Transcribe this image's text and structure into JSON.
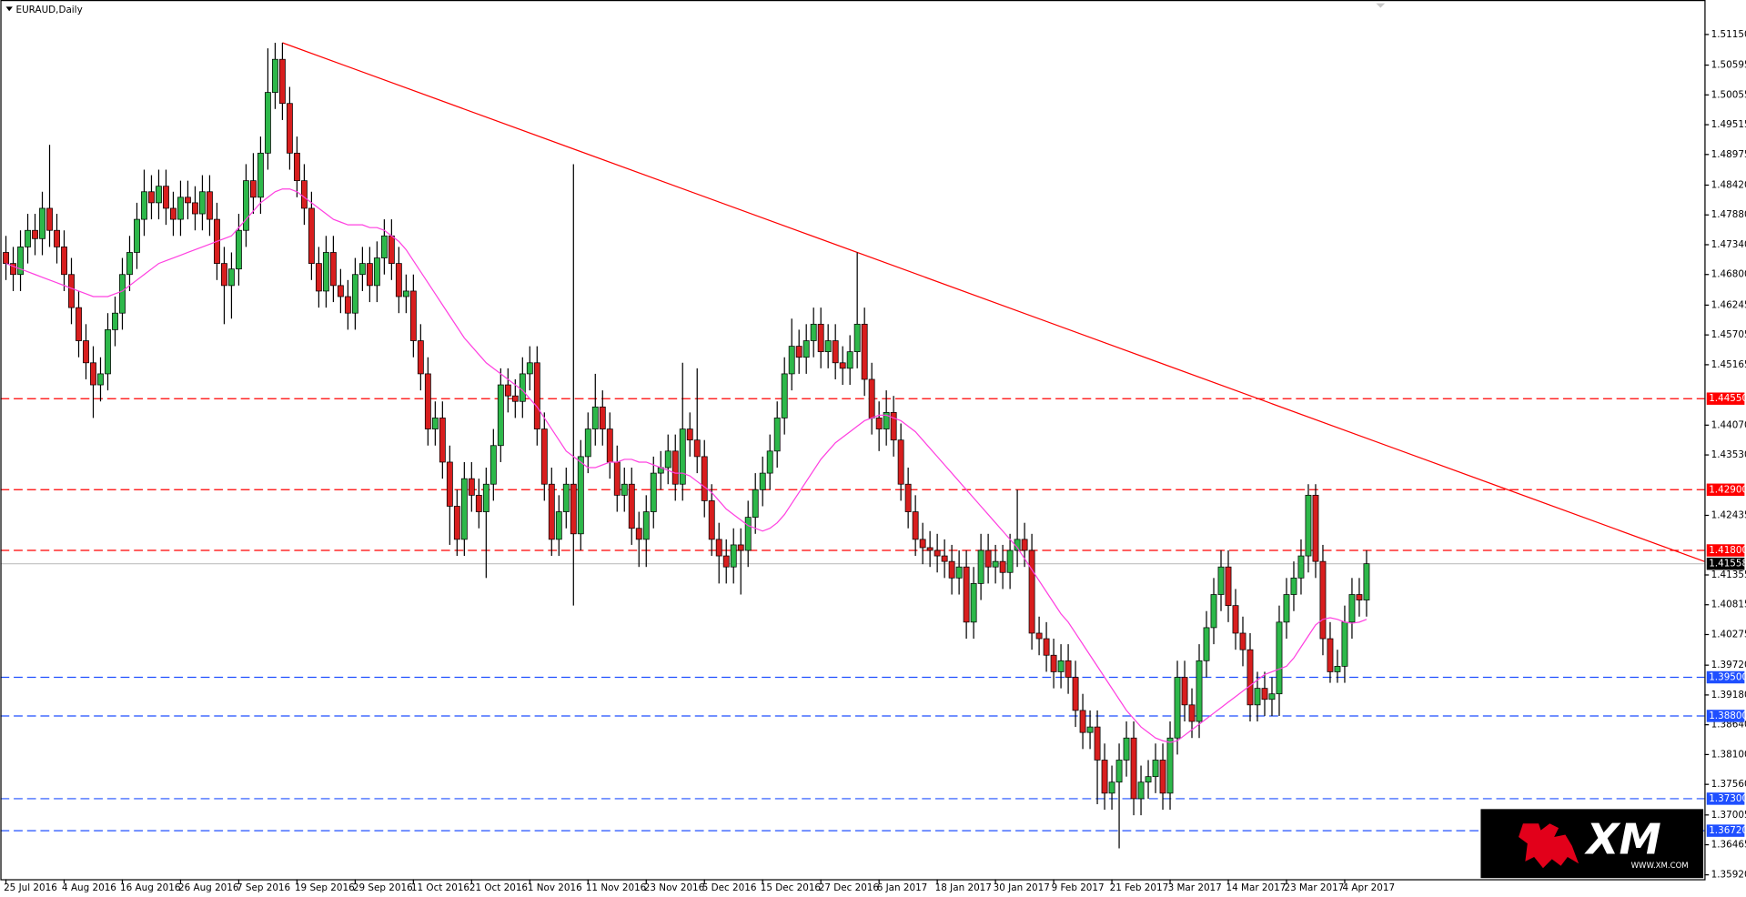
{
  "chart_data": {
    "type": "candlestick",
    "title": "EURAUD,Daily",
    "categories": [
      "25 Jul 2016",
      null,
      null,
      null,
      null,
      null,
      null,
      null,
      "4 Aug 2016",
      null,
      null,
      null,
      null,
      null,
      null,
      null,
      "16 Aug 2016",
      null,
      null,
      null,
      null,
      null,
      null,
      null,
      "26 Aug 2016",
      null,
      null,
      null,
      null,
      null,
      null,
      null,
      "7 Sep 2016",
      null,
      null,
      null,
      null,
      null,
      null,
      null,
      "19 Sep 2016",
      null,
      null,
      null,
      null,
      null,
      null,
      null,
      "29 Sep 2016",
      null,
      null,
      null,
      null,
      null,
      null,
      null,
      "11 Oct 2016",
      null,
      null,
      null,
      null,
      null,
      null,
      null,
      "21 Oct 2016",
      null,
      null,
      null,
      null,
      null,
      null,
      null,
      "1 Nov 2016",
      null,
      null,
      null,
      null,
      null,
      null,
      null,
      "11 Nov 2016",
      null,
      null,
      null,
      null,
      null,
      null,
      null,
      "23 Nov 2016",
      null,
      null,
      null,
      null,
      null,
      null,
      null,
      "5 Dec 2016",
      null,
      null,
      null,
      null,
      null,
      null,
      null,
      "15 Dec 2016",
      null,
      null,
      null,
      null,
      null,
      null,
      null,
      "27 Dec 2016",
      null,
      null,
      null,
      null,
      null,
      null,
      null,
      "6 Jan 2017",
      null,
      null,
      null,
      null,
      null,
      null,
      null,
      "18 Jan 2017",
      null,
      null,
      null,
      null,
      null,
      null,
      null,
      "30 Jan 2017",
      null,
      null,
      null,
      null,
      null,
      null,
      null,
      "9 Feb 2017",
      null,
      null,
      null,
      null,
      null,
      null,
      null,
      "21 Feb 2017",
      null,
      null,
      null,
      null,
      null,
      null,
      null,
      "3 Mar 2017",
      null,
      null,
      null,
      null,
      null,
      null,
      null,
      "14 Mar 2017",
      null,
      null,
      null,
      null,
      null,
      null,
      null,
      "23 Mar 2017",
      null,
      null,
      null,
      null,
      null,
      null,
      null,
      "4 Apr 2017",
      null,
      null,
      null
    ],
    "open": [
      1.472,
      1.47,
      1.468,
      1.473,
      1.476,
      1.4745,
      1.48,
      1.476,
      1.473,
      1.468,
      1.462,
      1.456,
      1.452,
      1.448,
      1.45,
      1.458,
      1.461,
      1.468,
      1.472,
      1.478,
      1.483,
      1.481,
      1.484,
      1.48,
      1.478,
      1.482,
      1.481,
      1.479,
      1.483,
      1.478,
      1.47,
      1.466,
      1.469,
      1.476,
      1.485,
      1.482,
      1.49,
      1.501,
      1.507,
      1.499,
      1.49,
      1.485,
      1.48,
      1.47,
      1.465,
      1.472,
      1.466,
      1.464,
      1.461,
      1.468,
      1.47,
      1.466,
      1.471,
      1.475,
      1.47,
      1.464,
      1.465,
      1.456,
      1.45,
      1.44,
      1.442,
      1.434,
      1.426,
      1.42,
      1.431,
      1.428,
      1.425,
      1.43,
      1.437,
      1.448,
      1.446,
      1.445,
      1.45,
      1.452,
      1.44,
      1.43,
      1.42,
      1.425,
      1.43,
      1.421,
      1.435,
      1.44,
      1.444,
      1.44,
      1.434,
      1.428,
      1.43,
      1.422,
      1.42,
      1.425,
      1.432,
      1.433,
      1.436,
      1.43,
      1.44,
      1.438,
      1.435,
      1.427,
      1.42,
      1.417,
      1.415,
      1.419,
      1.418,
      1.424,
      1.429,
      1.432,
      1.436,
      1.442,
      1.45,
      1.455,
      1.453,
      1.456,
      1.459,
      1.454,
      1.456,
      1.452,
      1.451,
      1.454,
      1.459,
      1.449,
      1.442,
      1.44,
      1.443,
      1.438,
      1.43,
      1.425,
      1.42,
      1.4185,
      1.418,
      1.417,
      1.416,
      1.413,
      1.415,
      1.405,
      1.412,
      1.418,
      1.415,
      1.416,
      1.414,
      1.418,
      1.42,
      1.418,
      1.403,
      1.402,
      1.399,
      1.396,
      1.398,
      1.395,
      1.389,
      1.385,
      1.386,
      1.38,
      1.374,
      1.376,
      1.38,
      1.384,
      1.373,
      1.376,
      1.377,
      1.38,
      1.374,
      1.384,
      1.395,
      1.39,
      1.387,
      1.398,
      1.404,
      1.41,
      1.415,
      1.408,
      1.403,
      1.4,
      1.39,
      1.393,
      1.391,
      1.392,
      1.405,
      1.41,
      1.413,
      1.417,
      1.428,
      1.416,
      1.402,
      1.396,
      1.397,
      1.405,
      1.41,
      1.409
    ],
    "high": [
      1.475,
      1.473,
      1.476,
      1.479,
      1.479,
      1.483,
      1.4915,
      1.479,
      1.476,
      1.471,
      1.465,
      1.459,
      1.455,
      1.453,
      1.461,
      1.464,
      1.471,
      1.475,
      1.481,
      1.487,
      1.486,
      1.487,
      1.487,
      1.483,
      1.485,
      1.485,
      1.484,
      1.486,
      1.486,
      1.481,
      1.473,
      1.472,
      1.479,
      1.488,
      1.49,
      1.493,
      1.509,
      1.51,
      1.51,
      1.502,
      1.493,
      1.488,
      1.483,
      1.473,
      1.475,
      1.475,
      1.469,
      1.467,
      1.471,
      1.473,
      1.473,
      1.474,
      1.478,
      1.478,
      1.473,
      1.468,
      1.468,
      1.459,
      1.453,
      1.445,
      1.445,
      1.437,
      1.429,
      1.434,
      1.434,
      1.431,
      1.433,
      1.44,
      1.451,
      1.451,
      1.449,
      1.453,
      1.455,
      1.455,
      1.443,
      1.433,
      1.428,
      1.433,
      1.488,
      1.438,
      1.443,
      1.45,
      1.447,
      1.443,
      1.437,
      1.433,
      1.433,
      1.425,
      1.428,
      1.435,
      1.436,
      1.439,
      1.439,
      1.452,
      1.443,
      1.451,
      1.438,
      1.43,
      1.423,
      1.42,
      1.422,
      1.422,
      1.427,
      1.432,
      1.435,
      1.439,
      1.445,
      1.453,
      1.46,
      1.458,
      1.459,
      1.462,
      1.462,
      1.459,
      1.459,
      1.455,
      1.457,
      1.472,
      1.462,
      1.452,
      1.445,
      1.447,
      1.446,
      1.441,
      1.433,
      1.428,
      1.423,
      1.4215,
      1.421,
      1.42,
      1.419,
      1.418,
      1.418,
      1.415,
      1.421,
      1.421,
      1.419,
      1.419,
      1.421,
      1.429,
      1.423,
      1.421,
      1.406,
      1.405,
      1.402,
      1.401,
      1.401,
      1.398,
      1.392,
      1.389,
      1.389,
      1.383,
      1.379,
      1.383,
      1.387,
      1.387,
      1.379,
      1.38,
      1.383,
      1.383,
      1.387,
      1.398,
      1.398,
      1.393,
      1.401,
      1.407,
      1.413,
      1.418,
      1.418,
      1.411,
      1.406,
      1.403,
      1.396,
      1.396,
      1.395,
      1.408,
      1.413,
      1.416,
      1.42,
      1.43,
      1.43,
      1.419,
      1.405,
      1.4,
      1.408,
      1.413,
      1.413,
      1.418
    ],
    "low": [
      1.467,
      1.465,
      1.465,
      1.47,
      1.4715,
      1.4715,
      1.473,
      1.47,
      1.465,
      1.459,
      1.453,
      1.449,
      1.442,
      1.445,
      1.447,
      1.455,
      1.458,
      1.465,
      1.469,
      1.475,
      1.478,
      1.478,
      1.477,
      1.475,
      1.475,
      1.478,
      1.476,
      1.476,
      1.475,
      1.467,
      1.459,
      1.46,
      1.466,
      1.473,
      1.479,
      1.479,
      1.487,
      1.498,
      1.496,
      1.487,
      1.482,
      1.477,
      1.467,
      1.462,
      1.462,
      1.463,
      1.461,
      1.458,
      1.458,
      1.465,
      1.463,
      1.463,
      1.468,
      1.467,
      1.461,
      1.461,
      1.453,
      1.447,
      1.437,
      1.437,
      1.431,
      1.419,
      1.417,
      1.417,
      1.425,
      1.422,
      1.413,
      1.427,
      1.434,
      1.443,
      1.442,
      1.442,
      1.447,
      1.437,
      1.427,
      1.417,
      1.417,
      1.422,
      1.408,
      1.418,
      1.432,
      1.437,
      1.437,
      1.431,
      1.425,
      1.425,
      1.419,
      1.415,
      1.415,
      1.422,
      1.429,
      1.43,
      1.427,
      1.427,
      1.435,
      1.432,
      1.424,
      1.417,
      1.412,
      1.412,
      1.412,
      1.41,
      1.415,
      1.421,
      1.426,
      1.429,
      1.433,
      1.439,
      1.447,
      1.45,
      1.45,
      1.453,
      1.451,
      1.451,
      1.449,
      1.448,
      1.448,
      1.451,
      1.446,
      1.439,
      1.436,
      1.437,
      1.435,
      1.427,
      1.422,
      1.417,
      1.4155,
      1.415,
      1.414,
      1.413,
      1.41,
      1.41,
      1.402,
      1.402,
      1.409,
      1.412,
      1.412,
      1.411,
      1.411,
      1.415,
      1.415,
      1.4,
      1.399,
      1.396,
      1.393,
      1.393,
      1.392,
      1.386,
      1.382,
      1.382,
      1.372,
      1.371,
      1.371,
      1.364,
      1.377,
      1.37,
      1.37,
      1.373,
      1.374,
      1.371,
      1.371,
      1.381,
      1.387,
      1.384,
      1.384,
      1.395,
      1.401,
      1.407,
      1.405,
      1.4,
      1.397,
      1.387,
      1.387,
      1.388,
      1.388,
      1.388,
      1.402,
      1.407,
      1.41,
      1.414,
      1.413,
      1.399,
      1.394,
      1.394,
      1.394,
      1.402,
      1.406,
      1.406
    ],
    "close": [
      1.47,
      1.468,
      1.473,
      1.476,
      1.4745,
      1.48,
      1.476,
      1.473,
      1.468,
      1.462,
      1.456,
      1.452,
      1.448,
      1.45,
      1.458,
      1.461,
      1.468,
      1.472,
      1.478,
      1.483,
      1.481,
      1.484,
      1.48,
      1.478,
      1.482,
      1.481,
      1.479,
      1.483,
      1.478,
      1.47,
      1.466,
      1.469,
      1.476,
      1.485,
      1.482,
      1.49,
      1.501,
      1.507,
      1.499,
      1.49,
      1.485,
      1.48,
      1.47,
      1.465,
      1.472,
      1.466,
      1.464,
      1.461,
      1.468,
      1.47,
      1.466,
      1.471,
      1.475,
      1.47,
      1.464,
      1.465,
      1.456,
      1.45,
      1.44,
      1.442,
      1.434,
      1.426,
      1.42,
      1.431,
      1.428,
      1.425,
      1.43,
      1.437,
      1.448,
      1.446,
      1.445,
      1.45,
      1.452,
      1.44,
      1.43,
      1.42,
      1.425,
      1.43,
      1.421,
      1.435,
      1.44,
      1.444,
      1.44,
      1.434,
      1.428,
      1.43,
      1.422,
      1.42,
      1.425,
      1.432,
      1.433,
      1.436,
      1.43,
      1.44,
      1.438,
      1.435,
      1.427,
      1.42,
      1.417,
      1.415,
      1.419,
      1.418,
      1.424,
      1.429,
      1.432,
      1.436,
      1.442,
      1.45,
      1.455,
      1.453,
      1.456,
      1.459,
      1.454,
      1.456,
      1.452,
      1.451,
      1.454,
      1.459,
      1.449,
      1.442,
      1.44,
      1.443,
      1.438,
      1.43,
      1.425,
      1.42,
      1.4185,
      1.418,
      1.417,
      1.416,
      1.413,
      1.415,
      1.405,
      1.412,
      1.418,
      1.415,
      1.416,
      1.414,
      1.418,
      1.42,
      1.418,
      1.403,
      1.402,
      1.399,
      1.396,
      1.398,
      1.395,
      1.389,
      1.385,
      1.386,
      1.38,
      1.374,
      1.376,
      1.38,
      1.384,
      1.373,
      1.376,
      1.377,
      1.38,
      1.374,
      1.384,
      1.395,
      1.39,
      1.387,
      1.398,
      1.404,
      1.41,
      1.415,
      1.408,
      1.403,
      1.4,
      1.39,
      1.393,
      1.391,
      1.392,
      1.405,
      1.41,
      1.413,
      1.417,
      1.428,
      1.416,
      1.402,
      1.396,
      1.397,
      1.405,
      1.41,
      1.409,
      1.41558
    ],
    "up_color": "#2db84a",
    "down_color": "#d81e1e",
    "ma": {
      "color": "#ff40e0",
      "values": [
        1.47,
        1.4695,
        1.469,
        1.4685,
        1.468,
        1.4675,
        1.467,
        1.4665,
        1.466,
        1.4655,
        1.465,
        1.4645,
        1.464,
        1.464,
        1.464,
        1.4645,
        1.465,
        1.466,
        1.467,
        1.468,
        1.469,
        1.47,
        1.4705,
        1.471,
        1.4715,
        1.472,
        1.4725,
        1.473,
        1.4735,
        1.474,
        1.4745,
        1.475,
        1.4765,
        1.478,
        1.4795,
        1.481,
        1.482,
        1.483,
        1.4835,
        1.4835,
        1.483,
        1.482,
        1.481,
        1.48,
        1.479,
        1.478,
        1.4775,
        1.477,
        1.477,
        1.477,
        1.4765,
        1.4765,
        1.476,
        1.475,
        1.474,
        1.4725,
        1.4705,
        1.4685,
        1.4665,
        1.4645,
        1.4625,
        1.4605,
        1.4585,
        1.4565,
        1.455,
        1.4535,
        1.452,
        1.451,
        1.45,
        1.449,
        1.448,
        1.447,
        1.4455,
        1.444,
        1.442,
        1.44,
        1.438,
        1.436,
        1.435,
        1.434,
        1.433,
        1.433,
        1.4335,
        1.434,
        1.434,
        1.4345,
        1.4345,
        1.434,
        1.434,
        1.4335,
        1.433,
        1.4325,
        1.432,
        1.432,
        1.4315,
        1.4305,
        1.4295,
        1.4285,
        1.427,
        1.4255,
        1.4245,
        1.4235,
        1.4225,
        1.422,
        1.4215,
        1.422,
        1.423,
        1.4245,
        1.4265,
        1.4285,
        1.4305,
        1.4325,
        1.4345,
        1.436,
        1.4375,
        1.4385,
        1.4395,
        1.4405,
        1.4415,
        1.442,
        1.4425,
        1.4425,
        1.442,
        1.4415,
        1.4405,
        1.4395,
        1.438,
        1.4365,
        1.435,
        1.4335,
        1.432,
        1.4305,
        1.429,
        1.4275,
        1.426,
        1.4245,
        1.423,
        1.4215,
        1.42,
        1.4185,
        1.4165,
        1.4145,
        1.4125,
        1.4105,
        1.4085,
        1.4065,
        1.405,
        1.403,
        1.401,
        1.399,
        1.397,
        1.395,
        1.393,
        1.391,
        1.389,
        1.3875,
        1.386,
        1.385,
        1.384,
        1.3835,
        1.3832,
        1.3835,
        1.3845,
        1.3855,
        1.3865,
        1.3875,
        1.3885,
        1.3895,
        1.3905,
        1.3915,
        1.3925,
        1.3935,
        1.3945,
        1.3955,
        1.396,
        1.3965,
        1.397,
        1.3985,
        1.4005,
        1.4025,
        1.4045,
        1.4055,
        1.4058,
        1.4055,
        1.405,
        1.4048,
        1.405,
        1.4055
      ]
    },
    "ylim": [
      1.35841,
      1.51775
    ],
    "yticks": [
      {
        "value": 1.5115,
        "label": "1.51150"
      },
      1.50595,
      1.50055,
      1.49515,
      1.48975,
      {
        "value": 1.4842,
        "label": "1.48420"
      },
      {
        "value": 1.4788,
        "label": "1.47880"
      },
      {
        "value": 1.4734,
        "label": "1.47340"
      },
      {
        "value": 1.468,
        "label": "1.46800"
      },
      1.46245,
      1.45705,
      1.45165,
      {
        "value": 1.4407,
        "label": "1.44070"
      },
      {
        "value": 1.4353,
        "label": "1.43530"
      },
      1.42435,
      1.41355,
      1.40815,
      1.40275,
      {
        "value": 1.3972,
        "label": "1.39720"
      },
      {
        "value": 1.3918,
        "label": "1.39180"
      },
      {
        "value": 1.3864,
        "label": "1.38640"
      },
      {
        "value": 1.381,
        "label": "1.38100"
      },
      {
        "value": 1.3756,
        "label": "1.37560"
      },
      1.37005,
      1.36465,
      {
        "value": 1.3592,
        "label": "1.35920"
      }
    ],
    "levels": [
      {
        "value": 1.4455,
        "label": "1.44550",
        "color": "#ff0000"
      },
      {
        "value": 1.429,
        "label": "1.42900",
        "color": "#ff0000"
      },
      {
        "value": 1.418,
        "label": "1.41800",
        "color": "#ff0000"
      },
      {
        "value": 1.395,
        "label": "1.39500",
        "color": "#1f4fff"
      },
      {
        "value": 1.388,
        "label": "1.38800",
        "color": "#1f4fff"
      },
      {
        "value": 1.373,
        "label": "1.37300",
        "color": "#1f4fff"
      },
      {
        "value": 1.3672,
        "label": "1.36720",
        "color": "#1f4fff"
      }
    ],
    "current_price": {
      "value": 1.41558,
      "color": "#c0c0c0"
    },
    "trendline": {
      "x": [
        38,
        117
      ],
      "y": [
        1.51,
        1.472
      ],
      "color": "#ff0000"
    }
  },
  "logo": {
    "brand": "XM",
    "url": "WWW.XM.COM"
  }
}
